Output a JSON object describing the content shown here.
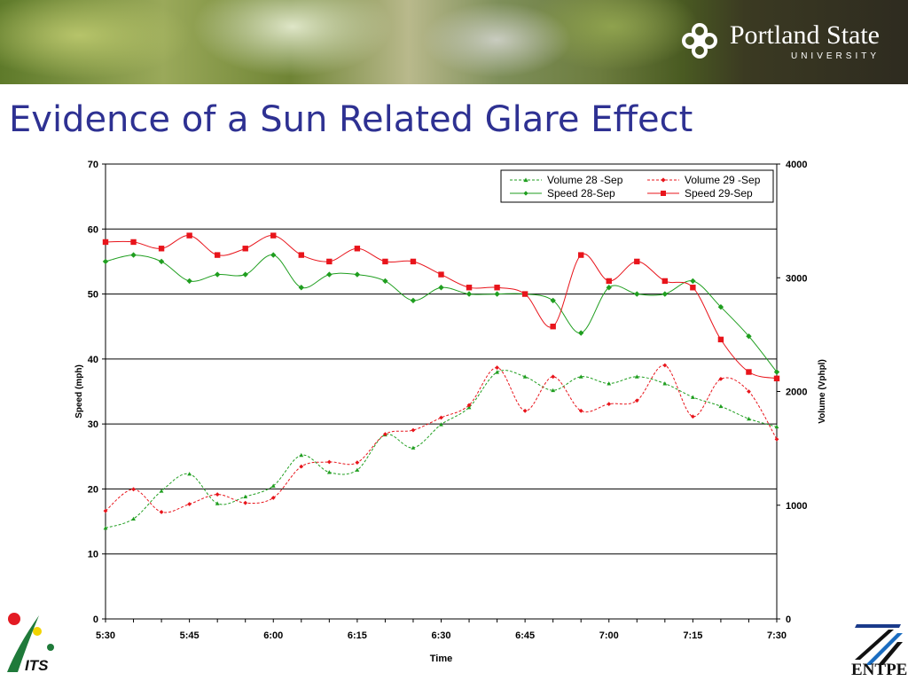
{
  "header": {
    "university_name": "Portland State",
    "university_sub": "UNIVERSITY"
  },
  "slide": {
    "title": "Evidence of a Sun Related Glare Effect"
  },
  "logos": {
    "its_text": "ITS",
    "entpe_text": "ENTPE"
  },
  "colors": {
    "title": "#2e3192",
    "green": "#1f9e1f",
    "red": "#e8141b"
  },
  "chart_data": {
    "type": "line",
    "xlabel": "Time",
    "ylabel": "Speed (mph)",
    "y2label": "Volume (Vphpl)",
    "ylim": [
      0,
      70
    ],
    "y2lim": [
      0,
      4000
    ],
    "yticks": [
      "0",
      "10",
      "20",
      "30",
      "40",
      "50",
      "60",
      "70"
    ],
    "y2ticks": [
      "0",
      "1000",
      "2000",
      "3000",
      "4000"
    ],
    "xticks": [
      "5:30",
      "5:45",
      "6:00",
      "6:15",
      "6:30",
      "6:45",
      "7:00",
      "7:15",
      "7:30"
    ],
    "x": [
      "5:30",
      "5:35",
      "5:40",
      "5:45",
      "5:50",
      "5:55",
      "6:00",
      "6:05",
      "6:10",
      "6:15",
      "6:20",
      "6:25",
      "6:30",
      "6:35",
      "6:40",
      "6:45",
      "6:50",
      "6:55",
      "7:00",
      "7:05",
      "7:10",
      "7:15",
      "7:20",
      "7:25",
      "7:30"
    ],
    "grid": "horizontal",
    "legend_position": "top-right",
    "series": [
      {
        "name": "Volume 28 -Sep",
        "axis": "right",
        "style": "dashed",
        "marker": "triangle",
        "color": "#1f9e1f",
        "values": [
          800,
          880,
          1125,
          1275,
          1015,
          1075,
          1170,
          1440,
          1290,
          1310,
          1620,
          1505,
          1710,
          1860,
          2170,
          2130,
          2010,
          2130,
          2070,
          2130,
          2070,
          1950,
          1870,
          1760,
          1690
        ]
      },
      {
        "name": "Volume 29 -Sep",
        "axis": "right",
        "style": "dashed",
        "marker": "diamond",
        "color": "#e8141b",
        "values": [
          950,
          1140,
          940,
          1010,
          1095,
          1020,
          1065,
          1340,
          1380,
          1375,
          1625,
          1660,
          1770,
          1880,
          2210,
          1830,
          2130,
          1830,
          1890,
          1920,
          2230,
          1780,
          2110,
          2000,
          1580
        ]
      },
      {
        "name": "Speed 28-Sep",
        "axis": "left",
        "style": "solid",
        "marker": "diamond",
        "color": "#1f9e1f",
        "values": [
          55,
          56,
          55,
          52,
          53,
          53,
          56,
          51,
          53,
          53,
          52,
          49,
          51,
          50,
          50,
          50,
          49,
          44,
          51,
          50,
          50,
          52,
          48,
          43.5,
          38
        ]
      },
      {
        "name": "Speed 29-Sep",
        "axis": "left",
        "style": "solid",
        "marker": "square",
        "color": "#e8141b",
        "values": [
          58,
          58,
          57,
          59,
          56,
          57,
          59,
          56,
          55,
          57,
          55,
          55,
          53,
          51,
          51,
          50,
          45,
          56,
          52,
          55,
          52,
          51,
          43,
          38,
          37
        ]
      }
    ]
  }
}
